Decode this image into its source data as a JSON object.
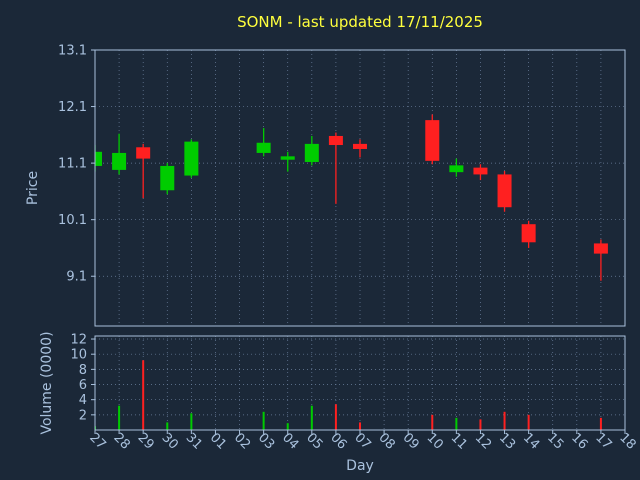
{
  "colors": {
    "background": "#1b2838",
    "text": "#a9c1dd",
    "title": "#ffff3d",
    "grid": "#6e82a0",
    "up": "#00cc00",
    "down": "#ff2020",
    "spine": "#a9c1dd"
  },
  "chart_data": [
    {
      "type": "candlestick",
      "title": "SONM - last updated 17/11/2025",
      "xlabel": "Day",
      "ylabel": "Price",
      "x_ticks": [
        "27",
        "28",
        "29",
        "30",
        "31",
        "01",
        "02",
        "03",
        "04",
        "05",
        "06",
        "07",
        "08",
        "09",
        "10",
        "11",
        "12",
        "13",
        "14",
        "15",
        "16",
        "17",
        "18"
      ],
      "y_ticks": [
        9.1,
        10.1,
        11.1,
        12.1,
        13.1
      ],
      "ylim": [
        8.22,
        13.1
      ],
      "grid": true,
      "candles": [
        {
          "day": "27",
          "open": 11.05,
          "high": 11.42,
          "low": 10.95,
          "close": 11.3
        },
        {
          "day": "28",
          "open": 10.98,
          "high": 11.62,
          "low": 10.9,
          "close": 11.28
        },
        {
          "day": "29",
          "open": 11.38,
          "high": 11.44,
          "low": 10.48,
          "close": 11.18
        },
        {
          "day": "30",
          "open": 10.62,
          "high": 11.1,
          "low": 10.55,
          "close": 11.05
        },
        {
          "day": "31",
          "open": 10.88,
          "high": 11.52,
          "low": 10.84,
          "close": 11.48
        },
        {
          "day": "03",
          "open": 11.28,
          "high": 11.72,
          "low": 11.22,
          "close": 11.46
        },
        {
          "day": "04",
          "open": 11.16,
          "high": 11.3,
          "low": 10.95,
          "close": 11.22
        },
        {
          "day": "05",
          "open": 11.12,
          "high": 11.58,
          "low": 11.06,
          "close": 11.44
        },
        {
          "day": "06",
          "open": 11.58,
          "high": 11.64,
          "low": 10.38,
          "close": 11.42
        },
        {
          "day": "07",
          "open": 11.44,
          "high": 11.52,
          "low": 11.2,
          "close": 11.35
        },
        {
          "day": "10",
          "open": 11.86,
          "high": 11.96,
          "low": 11.08,
          "close": 11.14
        },
        {
          "day": "11",
          "open": 10.94,
          "high": 11.18,
          "low": 10.86,
          "close": 11.06
        },
        {
          "day": "12",
          "open": 11.02,
          "high": 11.08,
          "low": 10.8,
          "close": 10.9
        },
        {
          "day": "13",
          "open": 10.9,
          "high": 10.96,
          "low": 10.24,
          "close": 10.32
        },
        {
          "day": "14",
          "open": 10.02,
          "high": 10.08,
          "low": 9.6,
          "close": 9.7
        },
        {
          "day": "17",
          "open": 9.68,
          "high": 9.75,
          "low": 9.02,
          "close": 9.5
        }
      ]
    },
    {
      "type": "bar",
      "ylabel": "Volume (0000)",
      "y_ticks": [
        2,
        4,
        6,
        8,
        10,
        12
      ],
      "ylim": [
        0,
        12.4
      ],
      "grid": true,
      "bars": [
        {
          "day": "27",
          "value": 0.5,
          "dir": "up"
        },
        {
          "day": "28",
          "value": 3.2,
          "dir": "up"
        },
        {
          "day": "29",
          "value": 9.2,
          "dir": "down"
        },
        {
          "day": "30",
          "value": 1.0,
          "dir": "up"
        },
        {
          "day": "31",
          "value": 2.2,
          "dir": "up"
        },
        {
          "day": "03",
          "value": 2.4,
          "dir": "up"
        },
        {
          "day": "04",
          "value": 0.9,
          "dir": "up"
        },
        {
          "day": "05",
          "value": 3.2,
          "dir": "up"
        },
        {
          "day": "06",
          "value": 3.4,
          "dir": "down"
        },
        {
          "day": "07",
          "value": 1.0,
          "dir": "down"
        },
        {
          "day": "10",
          "value": 2.0,
          "dir": "down"
        },
        {
          "day": "11",
          "value": 1.6,
          "dir": "up"
        },
        {
          "day": "12",
          "value": 1.4,
          "dir": "down"
        },
        {
          "day": "13",
          "value": 2.4,
          "dir": "down"
        },
        {
          "day": "14",
          "value": 2.0,
          "dir": "down"
        },
        {
          "day": "17",
          "value": 1.6,
          "dir": "down"
        }
      ]
    }
  ]
}
